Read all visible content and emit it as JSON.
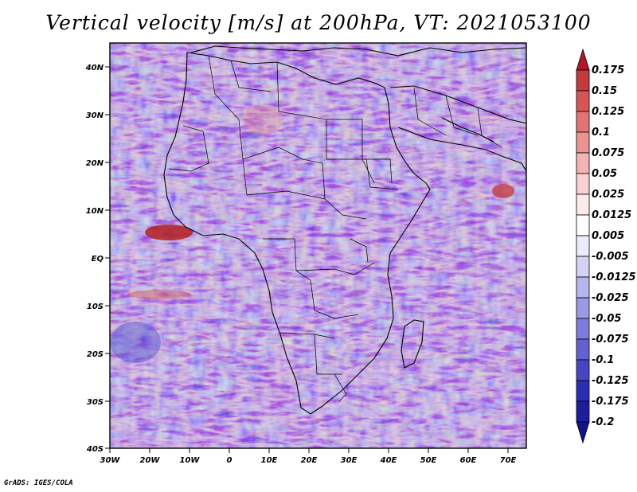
{
  "title": "Vertical velocity [m/s] at 200hPa, VT: 2021053100",
  "footer": "GrADS: IGES/COLA",
  "map": {
    "variable": "Vertical velocity",
    "units": "m/s",
    "level": "200hPa",
    "valid_time": "2021053100",
    "lat_labels": [
      "40N",
      "30N",
      "20N",
      "10N",
      "EQ",
      "10S",
      "20S",
      "30S",
      "40S"
    ],
    "lon_labels": [
      "30W",
      "20W",
      "10W",
      "0",
      "10E",
      "20E",
      "30E",
      "40E",
      "50E",
      "60E",
      "70E"
    ]
  },
  "colorbar": {
    "labels": [
      "0.175",
      "0.15",
      "0.125",
      "0.1",
      "0.075",
      "0.05",
      "0.025",
      "0.0125",
      "0.005",
      "-0.005",
      "-0.0125",
      "-0.025",
      "-0.05",
      "-0.075",
      "-0.1",
      "-0.125",
      "-0.175",
      "-0.2"
    ],
    "colors": [
      "#b2182b",
      "#c53a3d",
      "#d65656",
      "#e27474",
      "#ec9494",
      "#f3b4b4",
      "#f9d3d3",
      "#fdebeb",
      "#ffffff",
      "#ebebfb",
      "#d2d2f5",
      "#b6b6ee",
      "#9999e5",
      "#7c7cdb",
      "#6161d0",
      "#4646c4",
      "#2d2db4",
      "#1e1e9c",
      "#12128a"
    ]
  }
}
